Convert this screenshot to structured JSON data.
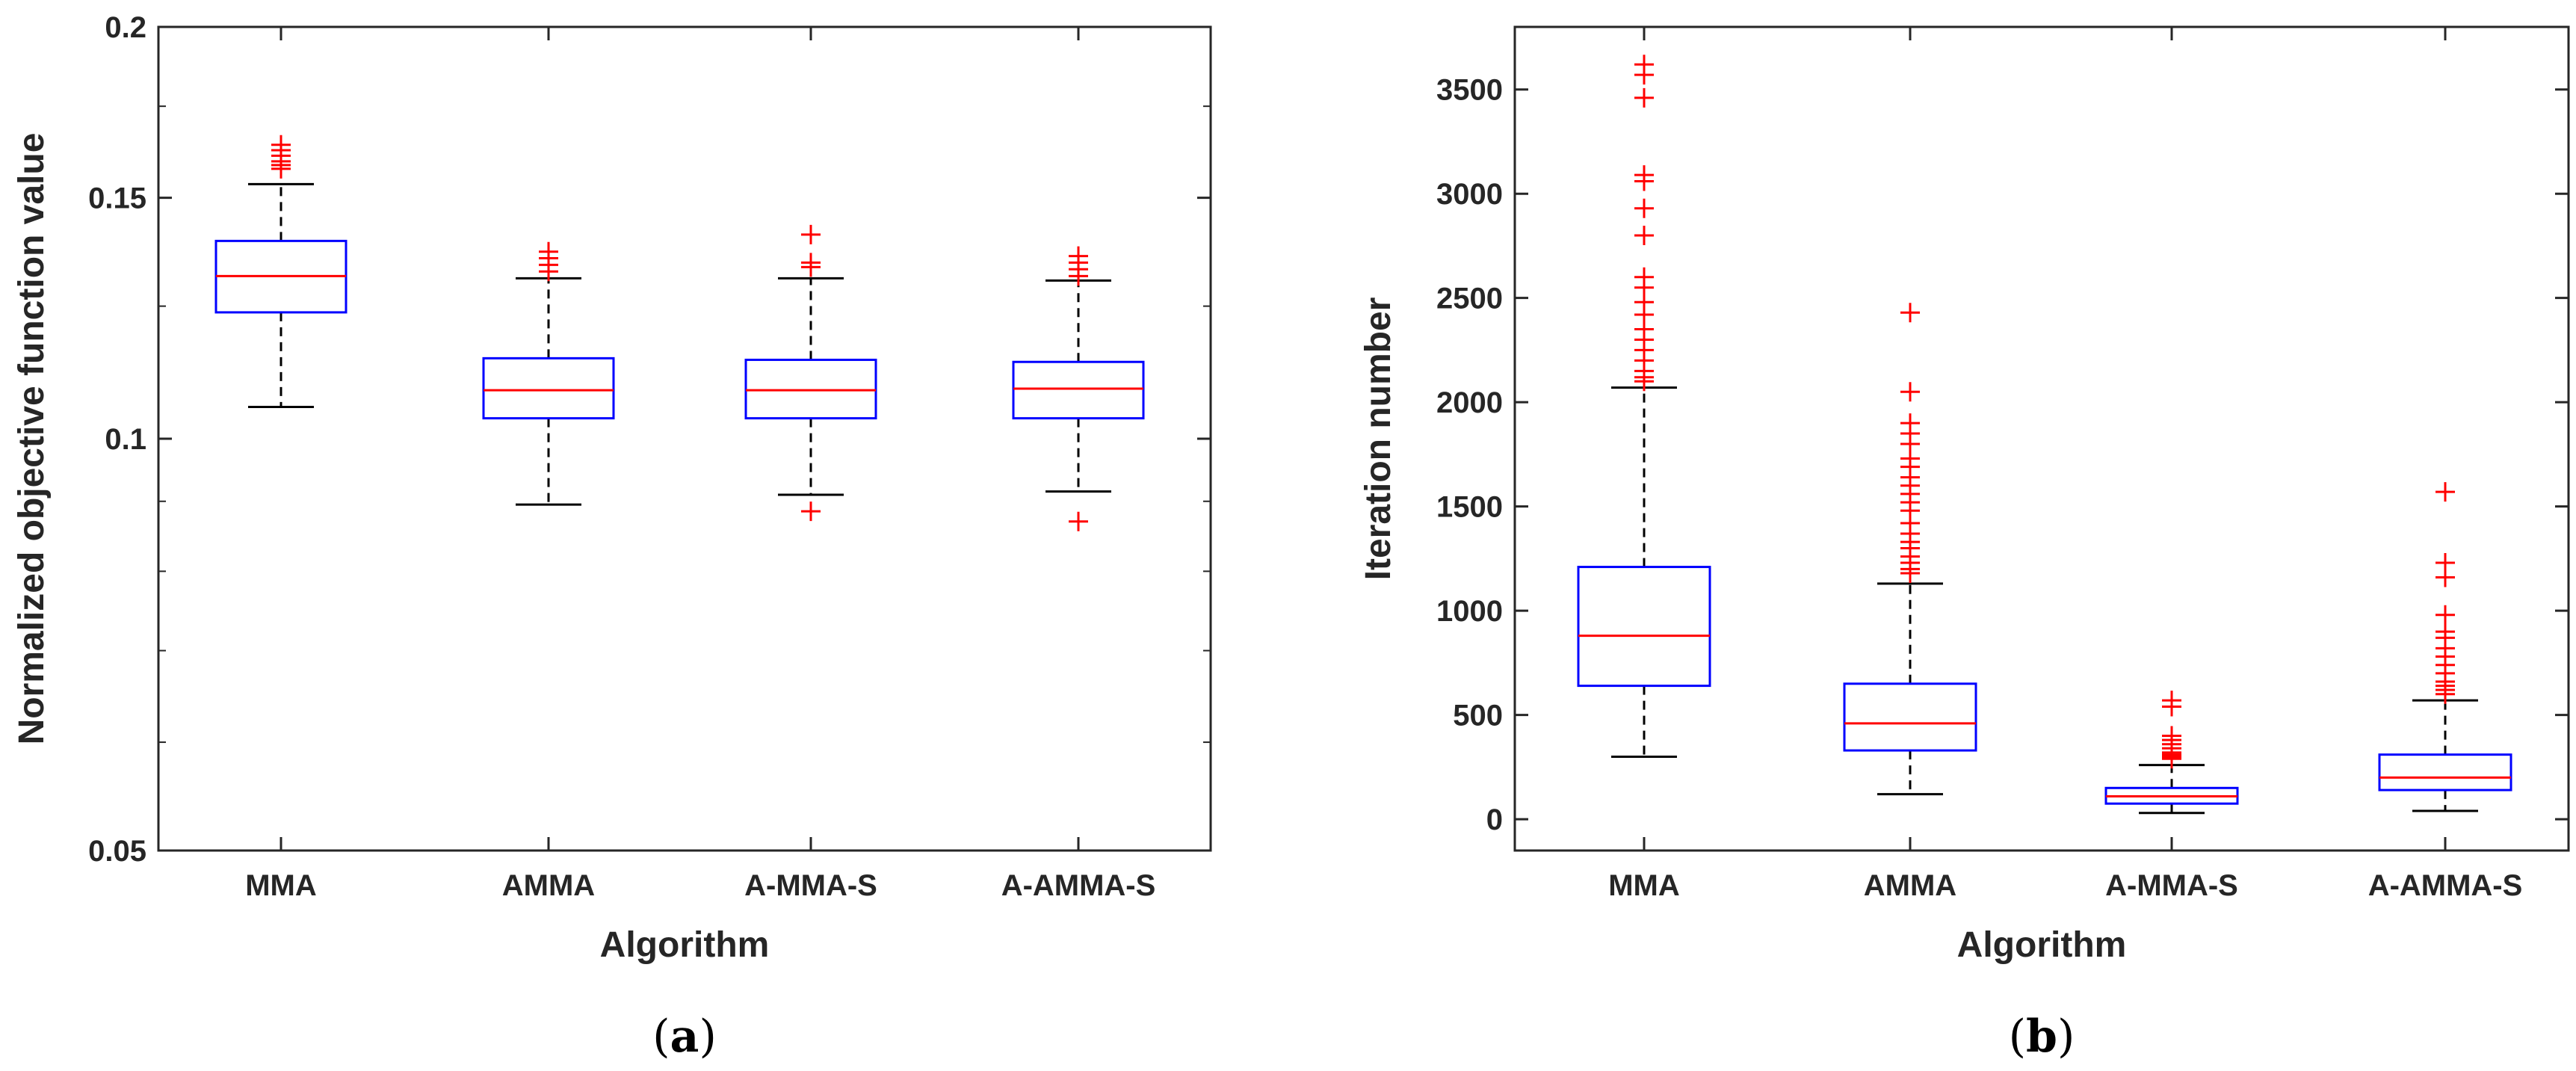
{
  "chart_data": [
    {
      "type": "box",
      "panel": "a",
      "caption_letter": "a",
      "xlabel": "Algorithm",
      "ylabel": "Normalized objective function value",
      "yscale": "log",
      "ylim": [
        0.05,
        0.2
      ],
      "yticks": [
        0.05,
        0.1,
        0.15,
        0.2
      ],
      "ytick_labels": [
        "0.05",
        "0.1",
        "0.15",
        "0.2"
      ],
      "categories": [
        "MMA",
        "AMMA",
        "A-MMA-S",
        "A-AMMA-S"
      ],
      "boxes": [
        {
          "whisker_low": 0.1055,
          "q1": 0.1237,
          "median": 0.1315,
          "q3": 0.1395,
          "whisker_high": 0.1535,
          "outliers": [
            0.1575,
            0.1585,
            0.1595,
            0.161,
            0.1625,
            0.164
          ]
        },
        {
          "whisker_low": 0.0895,
          "q1": 0.1035,
          "median": 0.1085,
          "q3": 0.1145,
          "whisker_high": 0.131,
          "outliers": [
            0.1325,
            0.134,
            0.1355,
            0.137
          ]
        },
        {
          "whisker_low": 0.091,
          "q1": 0.1035,
          "median": 0.1085,
          "q3": 0.1142,
          "whisker_high": 0.131,
          "outliers": [
            0.0885,
            0.1335,
            0.1345,
            0.141
          ]
        },
        {
          "whisker_low": 0.0915,
          "q1": 0.1035,
          "median": 0.1088,
          "q3": 0.1138,
          "whisker_high": 0.1305,
          "outliers": [
            0.087,
            0.1315,
            0.133,
            0.1345,
            0.136
          ]
        }
      ]
    },
    {
      "type": "box",
      "panel": "b",
      "caption_letter": "b",
      "xlabel": "Algorithm",
      "ylabel": "Iteration number",
      "yscale": "linear",
      "ylim": [
        -150,
        3800
      ],
      "yticks": [
        0,
        500,
        1000,
        1500,
        2000,
        2500,
        3000,
        3500
      ],
      "ytick_labels": [
        "0",
        "500",
        "1000",
        "1500",
        "2000",
        "2500",
        "3000",
        "3500"
      ],
      "categories": [
        "MMA",
        "AMMA",
        "A-MMA-S",
        "A-AMMA-S"
      ],
      "boxes": [
        {
          "whisker_low": 300,
          "q1": 640,
          "median": 880,
          "q3": 1210,
          "whisker_high": 2070,
          "outliers": [
            2100,
            2120,
            2150,
            2200,
            2250,
            2300,
            2350,
            2420,
            2480,
            2550,
            2600,
            2800,
            2930,
            3060,
            3090,
            3460,
            3570,
            3620
          ]
        },
        {
          "whisker_low": 120,
          "q1": 330,
          "median": 460,
          "q3": 650,
          "whisker_high": 1130,
          "outliers": [
            1180,
            1200,
            1230,
            1260,
            1300,
            1330,
            1370,
            1420,
            1480,
            1520,
            1560,
            1600,
            1640,
            1690,
            1730,
            1800,
            1850,
            1900,
            2050,
            2430
          ]
        },
        {
          "whisker_low": 30,
          "q1": 75,
          "median": 110,
          "q3": 150,
          "whisker_high": 260,
          "outliers": [
            290,
            300,
            310,
            320,
            340,
            360,
            380,
            400,
            540,
            570
          ]
        },
        {
          "whisker_low": 40,
          "q1": 140,
          "median": 200,
          "q3": 310,
          "whisker_high": 570,
          "outliers": [
            600,
            620,
            640,
            660,
            700,
            740,
            780,
            820,
            870,
            900,
            980,
            1160,
            1230,
            1570
          ]
        }
      ]
    }
  ],
  "colors": {
    "box": "#0000ff",
    "median": "#ff0000",
    "outlier": "#ff0000",
    "whisker": "#000000",
    "axis": "#262626"
  }
}
